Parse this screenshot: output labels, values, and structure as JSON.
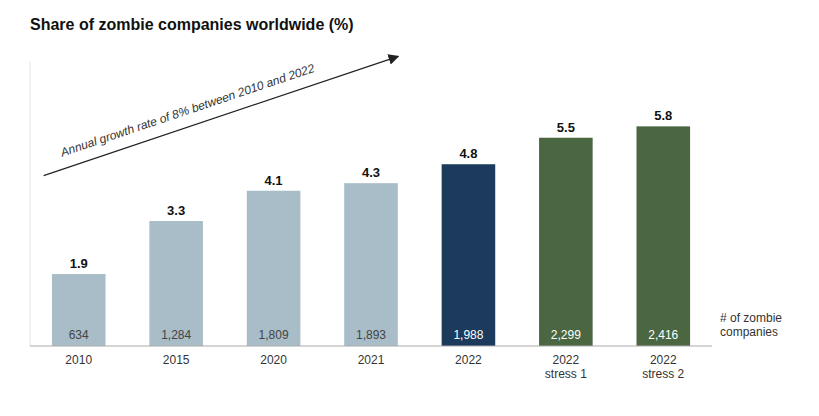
{
  "chart_data": {
    "type": "bar",
    "title": "Share of zombie companies worldwide (%)",
    "categories": [
      "2010",
      "2015",
      "2020",
      "2021",
      "2022",
      "2022\nstress 1",
      "2022\nstress 2"
    ],
    "values": [
      1.9,
      3.3,
      4.1,
      4.3,
      4.8,
      5.5,
      5.8
    ],
    "colors": [
      "#a8bdc8",
      "#a8bdc8",
      "#a8bdc8",
      "#a8bdc8",
      "#1b3a5c",
      "#4a6741",
      "#4a6741"
    ],
    "data_labels": true,
    "counts": [
      634,
      1284,
      1809,
      1893,
      1988,
      2299,
      2416
    ],
    "count_labels": [
      "634",
      "1,284",
      "1,809",
      "1,893",
      "1,988",
      "2,299",
      "2,416"
    ],
    "counts_label": "# of zombie\ncompanies",
    "annotation": "Annual growth rate of 8% between 2010 and 2022",
    "ylim": [
      0,
      7.5
    ],
    "grid": false,
    "tick_labels": "x"
  }
}
